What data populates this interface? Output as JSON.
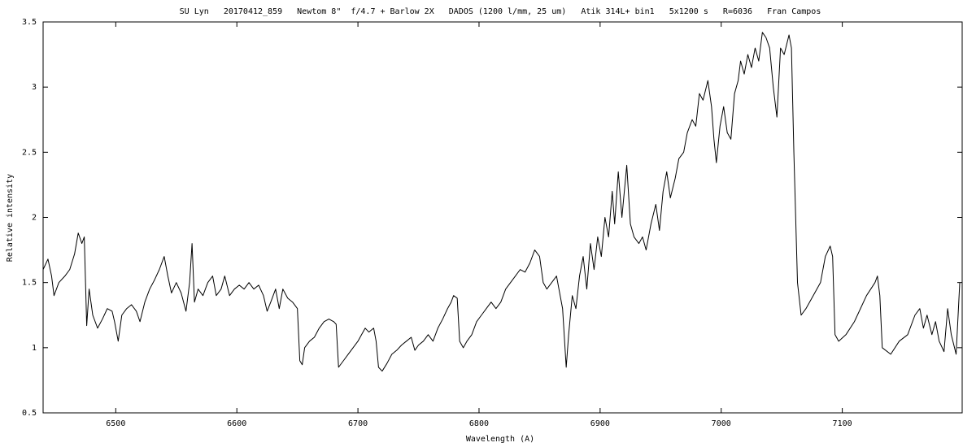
{
  "chart_data": {
    "type": "line",
    "title": "SU Lyn   20170412_859   Newtom 8\"  f/4.7 + Barlow 2X   DADOS (1200 l/mm, 25 um)   Atik 314L+ bin1   5x1200 s   R=6036   Fran Campos",
    "x_label": "Wavelength (A)",
    "y_label": "Relative intensity",
    "color": "#000000",
    "xlim": [
      6440,
      7199
    ],
    "ylim": [
      0.5,
      3.5
    ],
    "xticks": [
      6500,
      6600,
      6700,
      6800,
      6900,
      7000,
      7100
    ],
    "yticks": [
      0.5,
      1,
      1.5,
      2,
      2.5,
      3,
      3.5
    ],
    "grid": false,
    "x": [
      6440,
      6444,
      6447,
      6449,
      6453,
      6458,
      6462,
      6466,
      6469,
      6472,
      6474,
      6476,
      6478,
      6481,
      6485,
      6489,
      6493,
      6497,
      6499,
      6502,
      6505,
      6509,
      6513,
      6517,
      6520,
      6524,
      6528,
      6532,
      6536,
      6540,
      6543,
      6546,
      6550,
      6554,
      6558,
      6561,
      6563,
      6565,
      6568,
      6572,
      6576,
      6580,
      6583,
      6587,
      6590,
      6594,
      6598,
      6602,
      6606,
      6610,
      6614,
      6618,
      6622,
      6625,
      6628,
      6632,
      6635,
      6638,
      6642,
      6646,
      6650,
      6652,
      6654,
      6656,
      6660,
      6664,
      6668,
      6672,
      6676,
      6680,
      6682,
      6684,
      6688,
      6692,
      6696,
      6700,
      6703,
      6706,
      6709,
      6713,
      6715,
      6717,
      6720,
      6724,
      6728,
      6732,
      6736,
      6740,
      6744,
      6747,
      6750,
      6754,
      6758,
      6762,
      6766,
      6770,
      6774,
      6777,
      6779,
      6782,
      6784,
      6787,
      6790,
      6794,
      6798,
      6802,
      6806,
      6810,
      6814,
      6818,
      6822,
      6826,
      6830,
      6834,
      6838,
      6842,
      6846,
      6850,
      6853,
      6856,
      6860,
      6864,
      6866,
      6869,
      6872,
      6874,
      6877,
      6880,
      6883,
      6886,
      6889,
      6892,
      6895,
      6898,
      6901,
      6904,
      6907,
      6910,
      6912,
      6915,
      6918,
      6922,
      6925,
      6928,
      6932,
      6935,
      6938,
      6942,
      6946,
      6949,
      6952,
      6955,
      6958,
      6962,
      6965,
      6969,
      6972,
      6976,
      6979,
      6982,
      6985,
      6989,
      6992,
      6994,
      6996,
      6999,
      7002,
      7005,
      7008,
      7011,
      7014,
      7016,
      7019,
      7022,
      7025,
      7028,
      7031,
      7034,
      7037,
      7040,
      7043,
      7046,
      7049,
      7052,
      7056,
      7058,
      7060,
      7063,
      7066,
      7070,
      7076,
      7082,
      7086,
      7090,
      7092,
      7094,
      7097,
      7103,
      7110,
      7115,
      7120,
      7127,
      7129,
      7131,
      7133,
      7140,
      7147,
      7154,
      7160,
      7164,
      7167,
      7170,
      7174,
      7177,
      7180,
      7184,
      7187,
      7190,
      7194,
      7197
    ],
    "values": [
      1.6,
      1.68,
      1.55,
      1.4,
      1.5,
      1.55,
      1.6,
      1.72,
      1.88,
      1.8,
      1.85,
      1.17,
      1.45,
      1.25,
      1.15,
      1.22,
      1.3,
      1.28,
      1.2,
      1.05,
      1.25,
      1.3,
      1.33,
      1.28,
      1.2,
      1.35,
      1.45,
      1.52,
      1.6,
      1.7,
      1.55,
      1.42,
      1.5,
      1.42,
      1.28,
      1.5,
      1.8,
      1.35,
      1.45,
      1.4,
      1.5,
      1.55,
      1.4,
      1.45,
      1.55,
      1.4,
      1.45,
      1.48,
      1.45,
      1.5,
      1.45,
      1.48,
      1.4,
      1.28,
      1.35,
      1.45,
      1.3,
      1.45,
      1.38,
      1.35,
      1.3,
      0.9,
      0.87,
      1.0,
      1.05,
      1.08,
      1.15,
      1.2,
      1.22,
      1.2,
      1.18,
      0.85,
      0.9,
      0.95,
      1.0,
      1.05,
      1.1,
      1.15,
      1.12,
      1.15,
      1.05,
      0.85,
      0.82,
      0.88,
      0.95,
      0.98,
      1.02,
      1.05,
      1.08,
      0.98,
      1.02,
      1.05,
      1.1,
      1.05,
      1.15,
      1.22,
      1.3,
      1.35,
      1.4,
      1.38,
      1.05,
      1.0,
      1.05,
      1.1,
      1.2,
      1.25,
      1.3,
      1.35,
      1.3,
      1.35,
      1.45,
      1.5,
      1.55,
      1.6,
      1.58,
      1.65,
      1.75,
      1.7,
      1.5,
      1.45,
      1.5,
      1.55,
      1.45,
      1.3,
      0.85,
      1.1,
      1.4,
      1.3,
      1.55,
      1.7,
      1.45,
      1.8,
      1.6,
      1.85,
      1.7,
      2.0,
      1.85,
      2.2,
      1.95,
      2.35,
      2.0,
      2.4,
      1.95,
      1.85,
      1.8,
      1.85,
      1.75,
      1.95,
      2.1,
      1.9,
      2.2,
      2.35,
      2.15,
      2.3,
      2.45,
      2.5,
      2.65,
      2.75,
      2.7,
      2.95,
      2.9,
      3.05,
      2.85,
      2.6,
      2.42,
      2.7,
      2.85,
      2.65,
      2.6,
      2.95,
      3.05,
      3.2,
      3.1,
      3.25,
      3.15,
      3.3,
      3.2,
      3.42,
      3.38,
      3.3,
      3.0,
      2.77,
      3.3,
      3.25,
      3.4,
      3.3,
      2.5,
      1.5,
      1.25,
      1.3,
      1.4,
      1.5,
      1.7,
      1.78,
      1.7,
      1.1,
      1.05,
      1.1,
      1.2,
      1.3,
      1.4,
      1.5,
      1.55,
      1.4,
      1.0,
      0.95,
      1.05,
      1.1,
      1.25,
      1.3,
      1.15,
      1.25,
      1.1,
      1.2,
      1.05,
      0.97,
      1.3,
      1.1,
      0.95,
      1.5
    ]
  }
}
